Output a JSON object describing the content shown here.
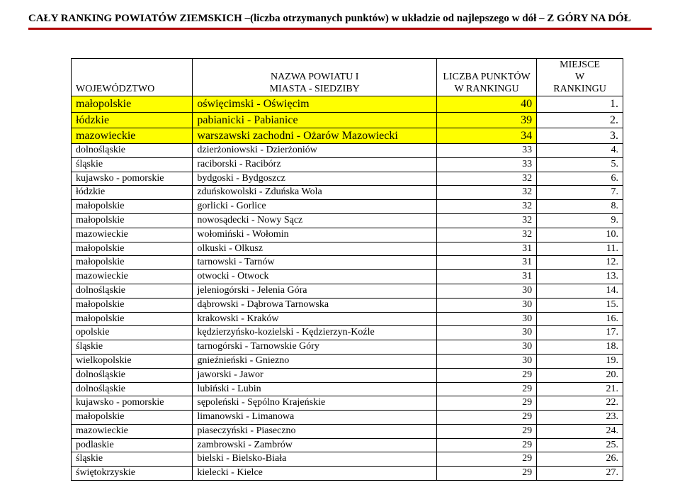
{
  "doc": {
    "title": "CAŁY RANKING POWIATÓW ZIEMSKICH –(liczba otrzymanych punktów) w układzie od najlepszego w dół – Z GÓRY NA DÓŁ"
  },
  "colors": {
    "underline": "#b00000",
    "highlight": "#ffff00",
    "border": "#000000",
    "text": "#000000",
    "background": "#ffffff"
  },
  "table": {
    "headers": {
      "woj": "WOJEWÓDZTWO",
      "name_line1": "NAZWA POWIATU I",
      "name_line2": "MIASTA - SIEDZIBY",
      "pts_line1": "LICZBA PUNKTÓW",
      "pts_line2": "W RANKINGU",
      "rank_line1": "MIEJSCE",
      "rank_line2": "W",
      "rank_line3": "RANKINGU"
    },
    "rows": [
      {
        "woj": "małopolskie",
        "name": "oświęcimski - Oświęcim",
        "pts": "40",
        "rank": "1.",
        "hl": true
      },
      {
        "woj": "łódzkie",
        "name": "pabianicki - Pabianice",
        "pts": "39",
        "rank": "2.",
        "hl": true
      },
      {
        "woj": "mazowieckie",
        "name": "warszawski zachodni - Ożarów Mazowiecki",
        "pts": "34",
        "rank": "3.",
        "hl": true
      },
      {
        "woj": "dolnośląskie",
        "name": "dzierżoniowski - Dzierżoniów",
        "pts": "33",
        "rank": "4.",
        "hl": false
      },
      {
        "woj": "śląskie",
        "name": "raciborski - Racibórz",
        "pts": "33",
        "rank": "5.",
        "hl": false
      },
      {
        "woj": "kujawsko - pomorskie",
        "name": "bydgoski - Bydgoszcz",
        "pts": "32",
        "rank": "6.",
        "hl": false
      },
      {
        "woj": "łódzkie",
        "name": "zduńskowolski - Zduńska Wola",
        "pts": "32",
        "rank": "7.",
        "hl": false
      },
      {
        "woj": "małopolskie",
        "name": "gorlicki - Gorlice",
        "pts": "32",
        "rank": "8.",
        "hl": false
      },
      {
        "woj": "małopolskie",
        "name": "nowosądecki - Nowy Sącz",
        "pts": "32",
        "rank": "9.",
        "hl": false
      },
      {
        "woj": "mazowieckie",
        "name": "wołomiński - Wołomin",
        "pts": "32",
        "rank": "10.",
        "hl": false
      },
      {
        "woj": "małopolskie",
        "name": "olkuski - Olkusz",
        "pts": "31",
        "rank": "11.",
        "hl": false
      },
      {
        "woj": "małopolskie",
        "name": "tarnowski - Tarnów",
        "pts": "31",
        "rank": "12.",
        "hl": false
      },
      {
        "woj": "mazowieckie",
        "name": "otwocki - Otwock",
        "pts": "31",
        "rank": "13.",
        "hl": false
      },
      {
        "woj": "dolnośląskie",
        "name": "jeleniogórski - Jelenia Góra",
        "pts": "30",
        "rank": "14.",
        "hl": false
      },
      {
        "woj": "małopolskie",
        "name": "dąbrowski - Dąbrowa Tarnowska",
        "pts": "30",
        "rank": "15.",
        "hl": false
      },
      {
        "woj": "małopolskie",
        "name": "krakowski - Kraków",
        "pts": "30",
        "rank": "16.",
        "hl": false
      },
      {
        "woj": "opolskie",
        "name": "kędzierzyńsko-kozielski - Kędzierzyn-Koźle",
        "pts": "30",
        "rank": "17.",
        "hl": false
      },
      {
        "woj": "śląskie",
        "name": "tarnogórski - Tarnowskie Góry",
        "pts": "30",
        "rank": "18.",
        "hl": false
      },
      {
        "woj": "wielkopolskie",
        "name": "gnieźnieński - Gniezno",
        "pts": "30",
        "rank": "19.",
        "hl": false
      },
      {
        "woj": "dolnośląskie",
        "name": "jaworski - Jawor",
        "pts": "29",
        "rank": "20.",
        "hl": false
      },
      {
        "woj": "dolnośląskie",
        "name": "lubiński - Lubin",
        "pts": "29",
        "rank": "21.",
        "hl": false
      },
      {
        "woj": "kujawsko - pomorskie",
        "name": "sępoleński - Sępólno Krajeńskie",
        "pts": "29",
        "rank": "22.",
        "hl": false
      },
      {
        "woj": "małopolskie",
        "name": "limanowski - Limanowa",
        "pts": "29",
        "rank": "23.",
        "hl": false
      },
      {
        "woj": "mazowieckie",
        "name": "piaseczyński - Piaseczno",
        "pts": "29",
        "rank": "24.",
        "hl": false
      },
      {
        "woj": "podlaskie",
        "name": "zambrowski - Zambrów",
        "pts": "29",
        "rank": "25.",
        "hl": false
      },
      {
        "woj": "śląskie",
        "name": "bielski - Bielsko-Biała",
        "pts": "29",
        "rank": "26.",
        "hl": false
      },
      {
        "woj": "świętokrzyskie",
        "name": "kielecki - Kielce",
        "pts": "29",
        "rank": "27.",
        "hl": false
      }
    ]
  }
}
